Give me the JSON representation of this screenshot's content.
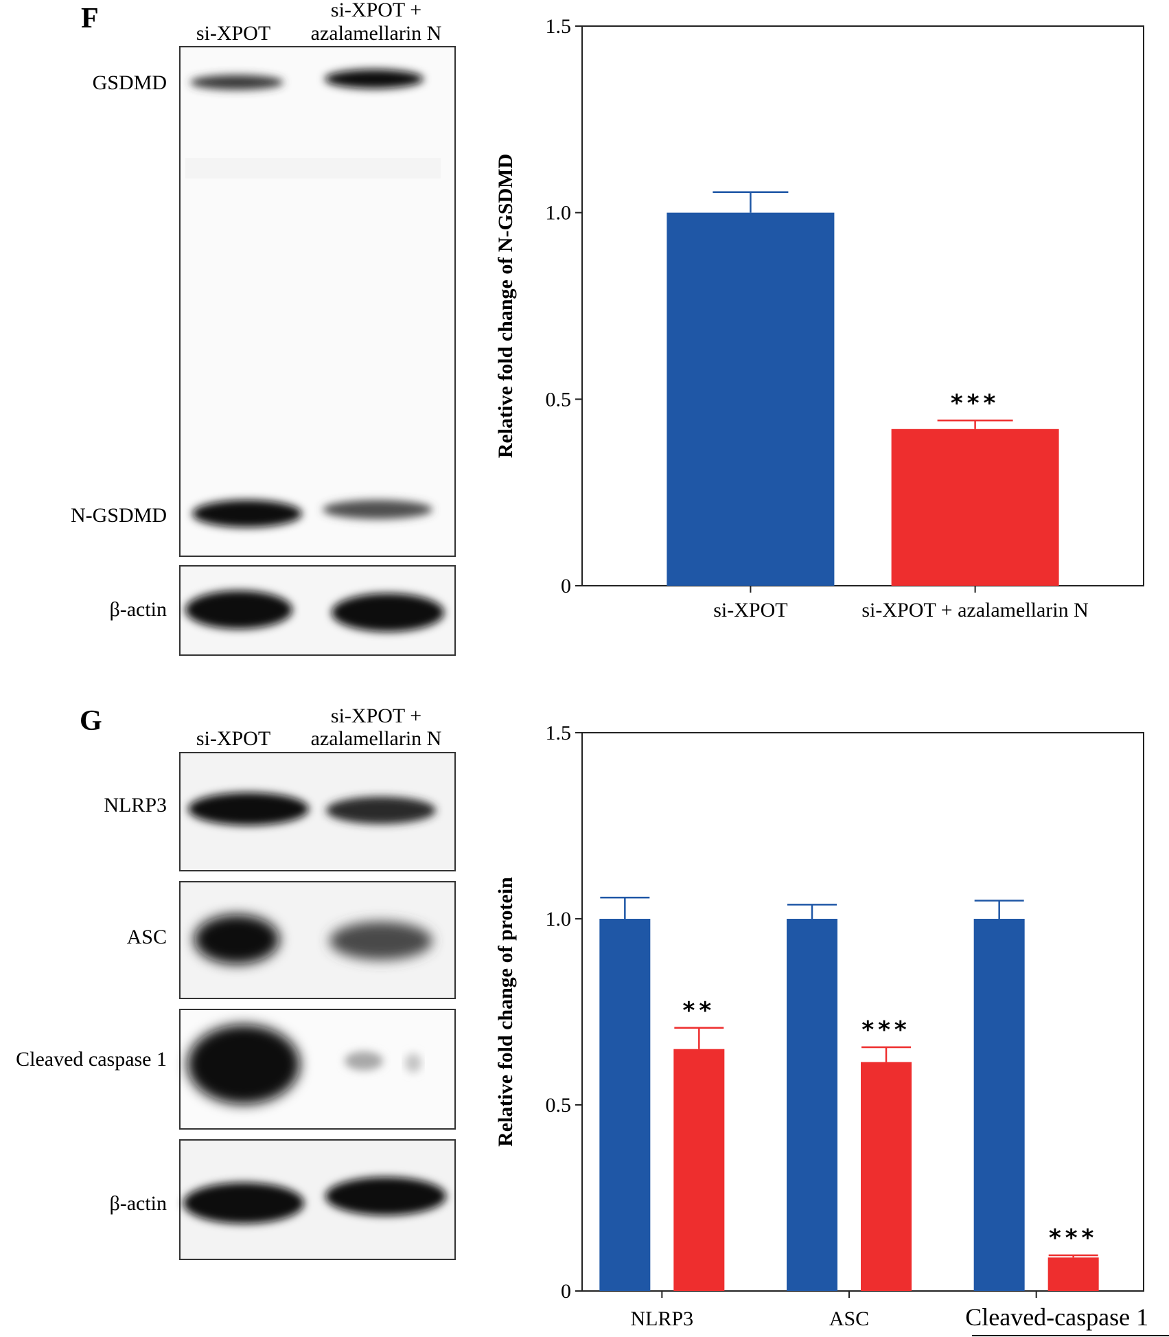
{
  "panels": {
    "F": {
      "letter": "F",
      "lanes": [
        "si-XPOT",
        "si-XPOT +",
        "azalamellarin N"
      ],
      "blot_labels": [
        "GSDMD",
        "N-GSDMD",
        "β-actin"
      ]
    },
    "G": {
      "letter": "G",
      "lanes": [
        "si-XPOT",
        "si-XPOT +",
        "azalamellarin N"
      ],
      "blot_labels": [
        "NLRP3",
        "ASC",
        "Cleaved caspase 1",
        "β-actin"
      ]
    }
  },
  "chart_data": [
    {
      "id": "F",
      "type": "bar",
      "title": "",
      "xlabel": "",
      "ylabel": "Relative fold change of N-GSDMD",
      "ylim": [
        0,
        1.5
      ],
      "yticks": [
        0,
        0.5,
        1.0,
        1.5
      ],
      "ytick_labels": [
        "0",
        "0.5",
        "1.0",
        "1.5"
      ],
      "categories": [
        "si-XPOT",
        "si-XPOT + azalamellarin N"
      ],
      "values": [
        1.0,
        0.42
      ],
      "errors": [
        0.055,
        0.023
      ],
      "colors": [
        "#1f57a6",
        "#ee2e2e"
      ],
      "significance": [
        "",
        "***"
      ],
      "grid": false,
      "legend": "none"
    },
    {
      "id": "G",
      "type": "bar",
      "title": "",
      "xlabel": "",
      "ylabel": "Relative fold change of protein",
      "ylim": [
        0,
        1.5
      ],
      "yticks": [
        0,
        0.5,
        1.0,
        1.5
      ],
      "ytick_labels": [
        "0",
        "0.5",
        "1.0",
        "1.5"
      ],
      "categories": [
        "NLRP3",
        "ASC",
        "Cleaved-caspase 1"
      ],
      "series": [
        {
          "values": [
            1.0,
            1.0,
            1.0
          ],
          "errors": [
            0.057,
            0.038,
            0.049
          ],
          "color": "#1f57a6",
          "significance": [
            "",
            "",
            ""
          ]
        },
        {
          "values": [
            0.65,
            0.615,
            0.09
          ],
          "errors": [
            0.057,
            0.04,
            0.006
          ],
          "color": "#ee2e2e",
          "significance": [
            "**",
            "***",
            "***"
          ]
        }
      ],
      "grid": false,
      "legend": "none"
    }
  ]
}
